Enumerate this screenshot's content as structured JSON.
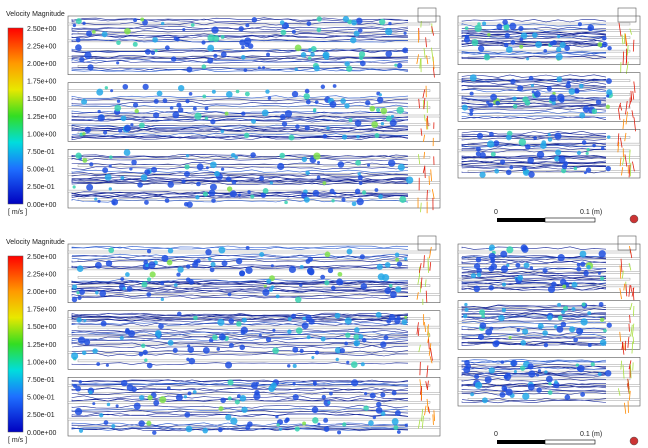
{
  "figures": [
    {
      "legend": {
        "title": "Velocity Magnitude",
        "labels": [
          "2.50e+00",
          "2.25e+00",
          "2.00e+00",
          "1.75e+00",
          "1.50e+00",
          "1.25e+00",
          "1.00e+00",
          "7.50e-01",
          "5.00e-01",
          "2.50e-01",
          "0.00e+00"
        ],
        "unit": "[ m/s ]"
      },
      "scale_bar": {
        "start": "0",
        "end": "0.1 (m)"
      }
    },
    {
      "legend": {
        "title": "Velocity Magnitude",
        "labels": [
          "2.50e+00",
          "2.25e+00",
          "2.00e+00",
          "1.75e+00",
          "1.50e+00",
          "1.25e+00",
          "1.00e+00",
          "7.50e-01",
          "5.00e-01",
          "2.50e-01",
          "0.00e+00"
        ],
        "unit": "[ m/s ]"
      },
      "scale_bar": {
        "start": "0",
        "end": "0.1 (m)"
      }
    }
  ]
}
